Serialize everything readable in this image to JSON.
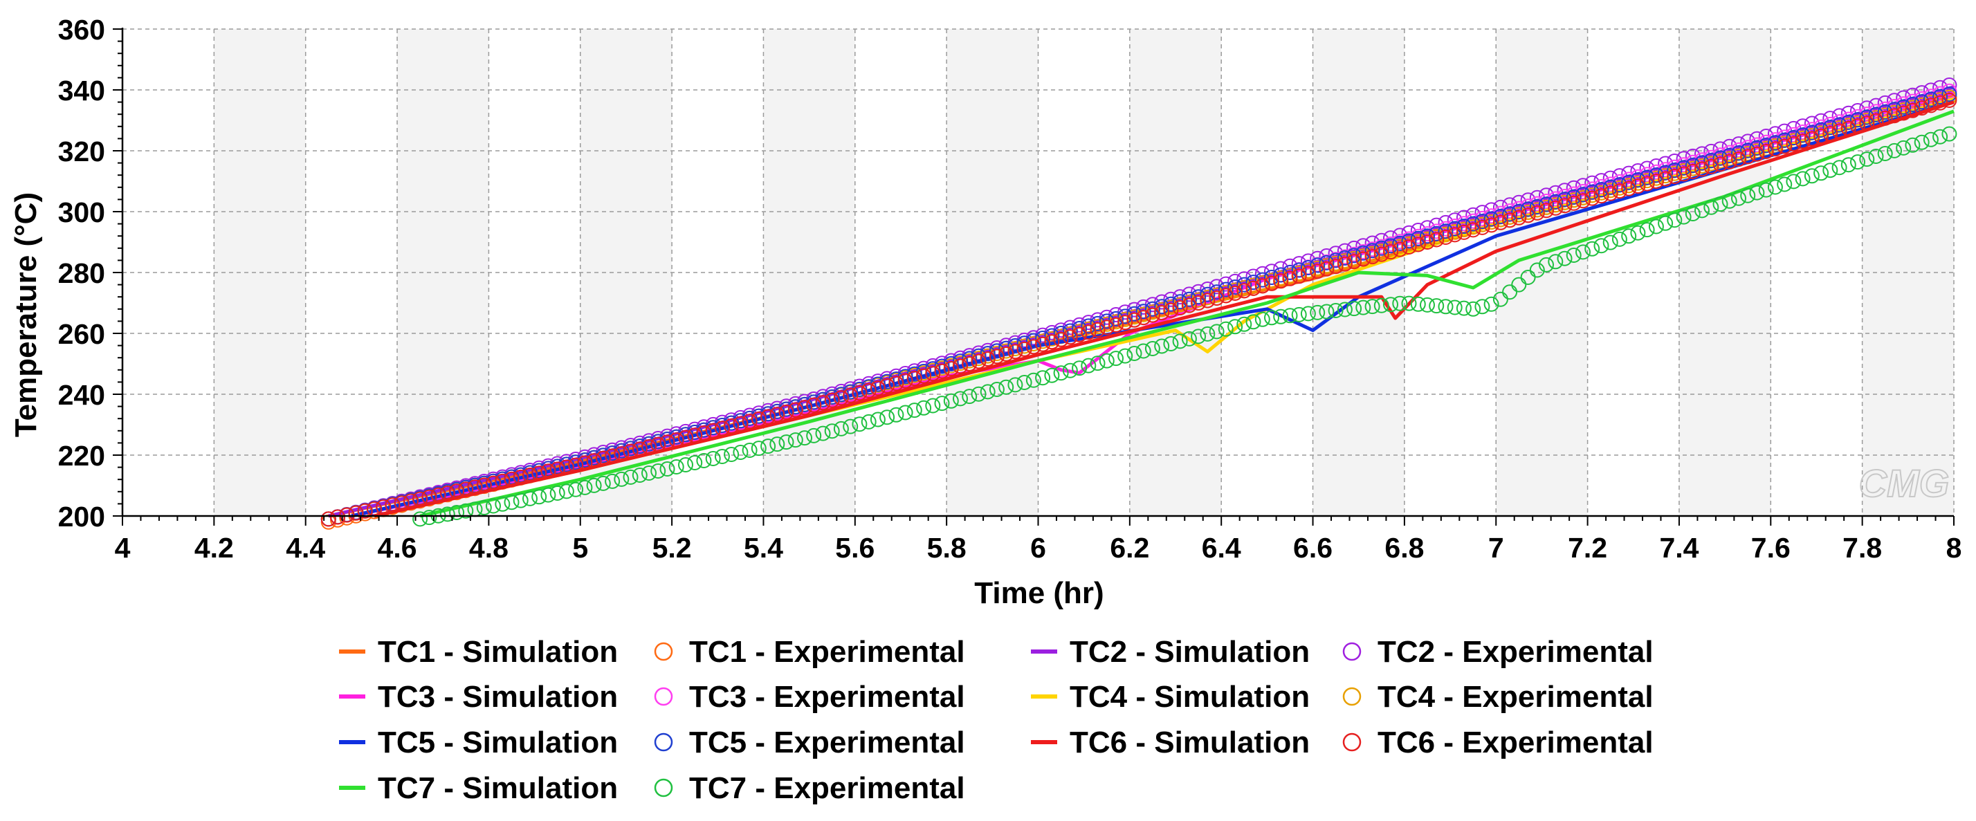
{
  "chart_data": {
    "type": "line",
    "title": "",
    "xlabel": "Time (hr)",
    "ylabel": "Temperature (°C)",
    "xlim": [
      4,
      8
    ],
    "ylim": [
      200,
      360
    ],
    "xticks": [
      "4",
      "4.2",
      "4.4",
      "4.6",
      "4.8",
      "5",
      "5.2",
      "5.4",
      "5.6",
      "5.8",
      "6",
      "6.2",
      "6.4",
      "6.6",
      "6.8",
      "7",
      "7.2",
      "7.4",
      "7.6",
      "7.8",
      "8"
    ],
    "yticks": [
      "200",
      "220",
      "240",
      "260",
      "280",
      "300",
      "320",
      "340",
      "360"
    ],
    "grid": true,
    "legend_position": "bottom",
    "watermark": "CMG",
    "series": [
      {
        "name": "TC1 - Simulation",
        "kind": "line",
        "color": "#ff6a13",
        "x": [
          4.45,
          5,
          5.5,
          6,
          6.4,
          6.6,
          7,
          7.5,
          8
        ],
        "y": [
          200,
          218,
          236,
          256,
          271,
          278,
          296,
          316,
          338
        ]
      },
      {
        "name": "TC1 - Experimental",
        "kind": "markers",
        "color": "#ff6a13",
        "x": [
          4.45,
          5,
          5.5,
          6,
          6.5,
          7,
          7.5,
          8
        ],
        "y": [
          198,
          217,
          236,
          256,
          276,
          297,
          317,
          338
        ]
      },
      {
        "name": "TC2 - Simulation",
        "kind": "line",
        "color": "#9b1fe0",
        "x": [
          4.45,
          5,
          5.5,
          6,
          6.5,
          7,
          7.5,
          8
        ],
        "y": [
          200,
          219,
          238,
          259,
          279,
          300,
          320,
          341
        ]
      },
      {
        "name": "TC2 - Experimental",
        "kind": "markers",
        "color": "#a020e0",
        "x": [
          4.45,
          5,
          5.5,
          6,
          6.5,
          7,
          7.5,
          8
        ],
        "y": [
          199,
          219,
          238,
          259,
          280,
          301,
          321,
          342
        ]
      },
      {
        "name": "TC3 - Simulation",
        "kind": "line",
        "color": "#ff20e0",
        "x": [
          4.5,
          5,
          5.5,
          5.8,
          6,
          6.05,
          6.09,
          6.2,
          6.5,
          7,
          7.5,
          8
        ],
        "y": [
          200,
          216,
          234,
          246,
          251,
          248,
          247,
          260,
          278,
          298,
          318,
          339
        ]
      },
      {
        "name": "TC3 - Experimental",
        "kind": "markers",
        "color": "#ff3ef0",
        "x": [
          4.45,
          5,
          5.5,
          6,
          6.5,
          7,
          7.5,
          8
        ],
        "y": [
          199,
          218,
          237,
          258,
          278,
          299,
          319,
          340
        ]
      },
      {
        "name": "TC4 - Simulation",
        "kind": "line",
        "color": "#ffd400",
        "x": [
          4.55,
          5,
          5.5,
          6,
          6.3,
          6.37,
          6.45,
          6.6,
          7,
          7.5,
          8
        ],
        "y": [
          200,
          215,
          233,
          251,
          261,
          254,
          264,
          276,
          296,
          316,
          337
        ]
      },
      {
        "name": "TC4 - Experimental",
        "kind": "markers",
        "color": "#e8a000",
        "x": [
          4.45,
          5,
          5.5,
          6,
          6.5,
          7,
          7.5,
          8
        ],
        "y": [
          199,
          218,
          237,
          257,
          277,
          297,
          317,
          338
        ]
      },
      {
        "name": "TC5 - Simulation",
        "kind": "line",
        "color": "#1030e0",
        "x": [
          4.5,
          5,
          5.5,
          6,
          6.5,
          6.6,
          6.7,
          7,
          7.5,
          8
        ],
        "y": [
          200,
          217,
          236,
          256,
          268,
          261,
          272,
          292,
          314,
          336
        ]
      },
      {
        "name": "TC5 - Experimental",
        "kind": "markers",
        "color": "#2040d0",
        "x": [
          4.45,
          5,
          5.5,
          6,
          6.5,
          7,
          7.5,
          8
        ],
        "y": [
          199,
          218,
          237,
          258,
          278,
          298,
          318,
          339
        ]
      },
      {
        "name": "TC6 - Simulation",
        "kind": "line",
        "color": "#ee1c1c",
        "x": [
          4.55,
          5,
          5.5,
          6,
          6.5,
          6.75,
          6.78,
          6.85,
          7,
          7.5,
          8
        ],
        "y": [
          200,
          215,
          233,
          253,
          272,
          272,
          265,
          276,
          287,
          312,
          336
        ]
      },
      {
        "name": "TC6 - Experimental",
        "kind": "markers",
        "color": "#e62020",
        "x": [
          4.45,
          5,
          5.5,
          6,
          6.5,
          7,
          7.5,
          8
        ],
        "y": [
          199,
          217,
          236,
          256,
          276,
          296,
          316,
          337
        ]
      },
      {
        "name": "TC7 - Simulation",
        "kind": "line",
        "color": "#30e030",
        "x": [
          4.65,
          5,
          5.5,
          6,
          6.5,
          6.7,
          6.85,
          6.95,
          7.05,
          7.5,
          8
        ],
        "y": [
          200,
          212,
          231,
          251,
          270,
          280,
          279,
          275,
          284,
          305,
          333
        ]
      },
      {
        "name": "TC7 - Experimental",
        "kind": "markers",
        "color": "#20c040",
        "x": [
          4.65,
          4.8,
          5,
          5.5,
          6,
          6.5,
          6.8,
          6.95,
          7.0,
          7.1,
          7.5,
          8
        ],
        "y": [
          199,
          203,
          209,
          226,
          245,
          265,
          270,
          268,
          270,
          282,
          303,
          326
        ]
      }
    ]
  }
}
